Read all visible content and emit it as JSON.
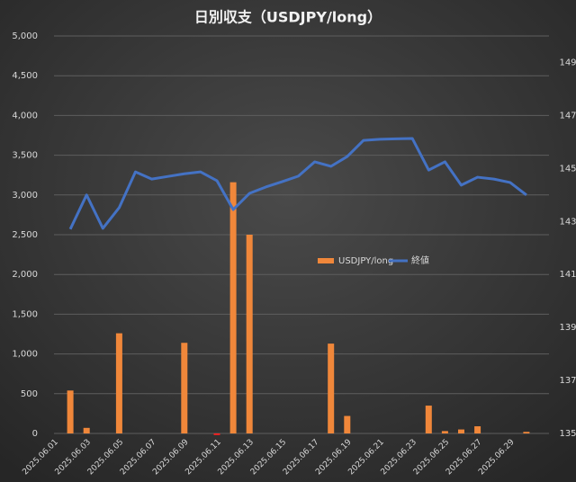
{
  "chart_data": {
    "type": "bar_line",
    "title": "日別収支（USDJPY/long）",
    "categories": [
      "2025.06.01",
      null,
      "2025.06.03",
      null,
      "2025.06.05",
      null,
      "2025.06.07",
      null,
      "2025.06.09",
      null,
      "2025.06.11",
      null,
      "2025.06.13",
      null,
      "2025.06.15",
      null,
      "2025.06.17",
      null,
      "2025.06.19",
      null,
      "2025.06.21",
      null,
      "2025.06.23",
      null,
      "2025.06.25",
      null,
      "2025.06.27",
      null,
      "2025.06.29",
      null
    ],
    "series": [
      {
        "name": "USDJPY/long",
        "type": "bar",
        "color": "#f0873a",
        "negative_color": "#ff2020",
        "values": [
          null,
          540,
          70,
          null,
          1260,
          null,
          null,
          null,
          1140,
          null,
          -20,
          3160,
          2500,
          null,
          null,
          null,
          null,
          1130,
          220,
          null,
          null,
          null,
          null,
          350,
          30,
          50,
          90,
          null,
          null,
          20
        ]
      },
      {
        "name": "終値",
        "type": "line",
        "axis": "y2",
        "color": "#4472c4",
        "values": [
          null,
          142.71,
          144.0,
          142.74,
          143.52,
          144.87,
          144.6,
          144.7,
          144.8,
          144.87,
          144.54,
          143.45,
          144.06,
          144.3,
          144.5,
          144.71,
          145.25,
          145.08,
          145.45,
          146.06,
          146.1,
          146.12,
          146.13,
          144.94,
          145.25,
          144.37,
          144.67,
          144.6,
          144.47,
          144.0
        ]
      }
    ],
    "ylim": [
      0,
      5000
    ],
    "yticks": [
      0,
      500,
      {
        "value": 1000,
        "label": "1,000"
      },
      {
        "value": 1500,
        "label": "1,500"
      },
      {
        "value": 2000,
        "label": "2,000"
      },
      {
        "value": 2500,
        "label": "2,500"
      },
      {
        "value": 3000,
        "label": "3,000"
      },
      {
        "value": 3500,
        "label": "3,500"
      },
      {
        "value": 4000,
        "label": "4,000"
      },
      {
        "value": 4500,
        "label": "4,500"
      },
      {
        "value": 5000,
        "label": "5,000"
      }
    ],
    "y2lim": [
      135,
      150
    ],
    "y2ticks": [
      135,
      137,
      139,
      141,
      143,
      145,
      147,
      149
    ],
    "grid": true,
    "legend": "center"
  }
}
